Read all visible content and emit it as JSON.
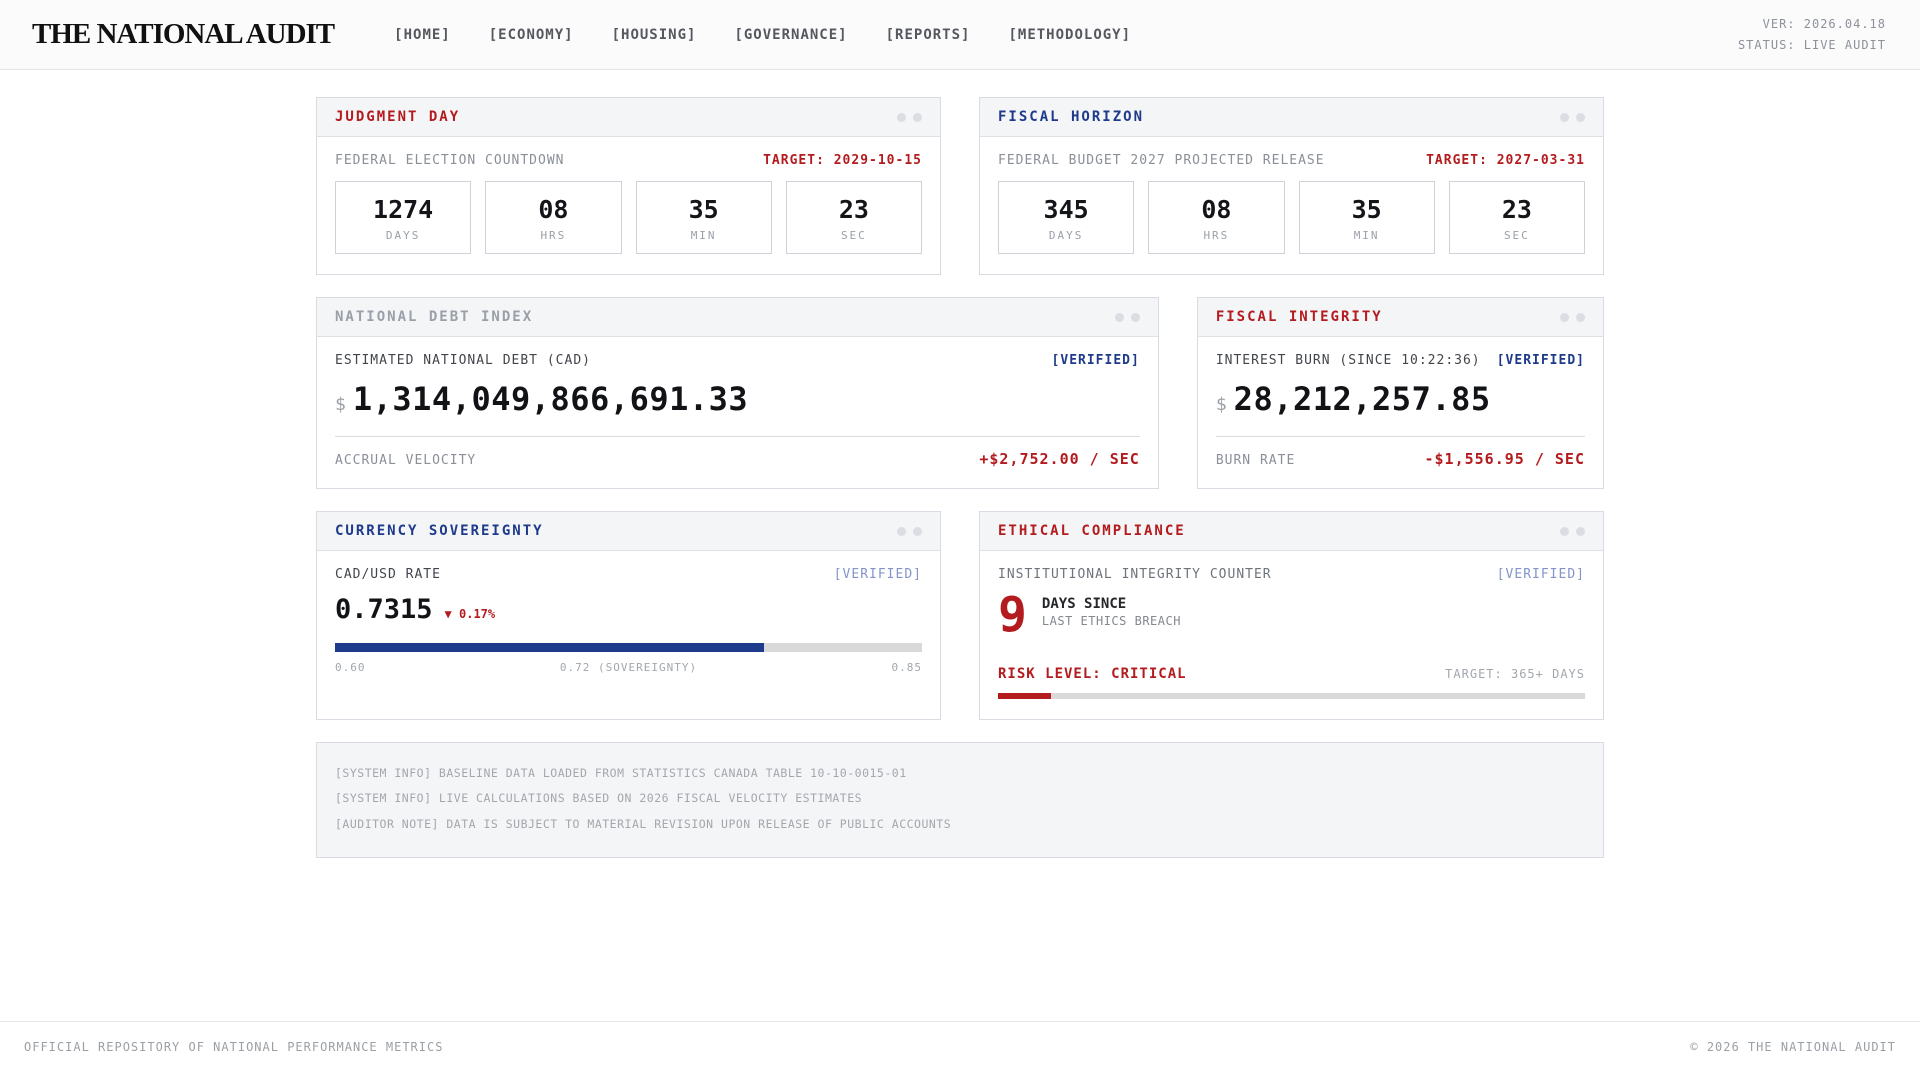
{
  "brand": {
    "logo": "THE NATIONAL AUDIT",
    "version": "VER: 2026.04.18",
    "status": "STATUS: LIVE AUDIT"
  },
  "nav": {
    "items": [
      {
        "label": "[HOME]"
      },
      {
        "label": "[ECONOMY]"
      },
      {
        "label": "[HOUSING]"
      },
      {
        "label": "[GOVERNANCE]"
      },
      {
        "label": "[REPORTS]"
      },
      {
        "label": "[METHODOLOGY]"
      }
    ]
  },
  "panels": {
    "judgment_day": {
      "title": "JUDGMENT DAY",
      "subtitle": "FEDERAL ELECTION COUNTDOWN",
      "target": "TARGET: 2029-10-15",
      "countdown": [
        {
          "value": "1274",
          "unit": "DAYS"
        },
        {
          "value": "08",
          "unit": "HRS"
        },
        {
          "value": "35",
          "unit": "MIN"
        },
        {
          "value": "23",
          "unit": "SEC"
        }
      ]
    },
    "fiscal_horizon": {
      "title": "FISCAL HORIZON",
      "subtitle": "FEDERAL BUDGET 2027 PROJECTED RELEASE",
      "target": "TARGET: 2027-03-31",
      "countdown": [
        {
          "value": "345",
          "unit": "DAYS"
        },
        {
          "value": "08",
          "unit": "HRS"
        },
        {
          "value": "35",
          "unit": "MIN"
        },
        {
          "value": "23",
          "unit": "SEC"
        }
      ]
    },
    "national_debt": {
      "title": "NATIONAL DEBT INDEX",
      "label": "ESTIMATED NATIONAL DEBT (CAD)",
      "verified": "[VERIFIED]",
      "currency_symbol": "$",
      "value": "1,314,049,866,691.33",
      "velocity_label": "ACCRUAL VELOCITY",
      "velocity_value": "+$2,752.00 / SEC"
    },
    "fiscal_integrity": {
      "title": "FISCAL INTEGRITY",
      "label": "INTEREST BURN (SINCE 10:22:36)",
      "verified": "[VERIFIED]",
      "currency_symbol": "$",
      "value": "28,212,257.85",
      "burn_label": "BURN RATE",
      "burn_value": "-$1,556.95 / SEC"
    },
    "currency_sovereignty": {
      "title": "CURRENCY SOVEREIGNTY",
      "label": "CAD/USD RATE",
      "verified": "[VERIFIED]",
      "rate": "0.7315",
      "change": "▼ 0.17%",
      "progress_pct": 73,
      "scale_min": "0.60",
      "scale_mid": "0.72 (SOVEREIGNTY)",
      "scale_max": "0.85"
    },
    "ethical_compliance": {
      "title": "ETHICAL COMPLIANCE",
      "label": "INSTITUTIONAL INTEGRITY COUNTER",
      "verified": "[VERIFIED]",
      "days": "9",
      "days_line1": "DAYS SINCE",
      "days_line2": "LAST ETHICS BREACH",
      "risk_level": "RISK LEVEL: CRITICAL",
      "risk_target": "TARGET: 365+ DAYS",
      "progress_pct": 9
    }
  },
  "system_log": {
    "line1": "[SYSTEM INFO] BASELINE DATA LOADED FROM STATISTICS CANADA TABLE 10-10-0015-01",
    "line2": "[SYSTEM INFO] LIVE CALCULATIONS BASED ON 2026 FISCAL VELOCITY ESTIMATES",
    "line3": "[AUDITOR NOTE] DATA IS SUBJECT TO MATERIAL REVISION UPON RELEASE OF PUBLIC ACCOUNTS"
  },
  "footer": {
    "left": "OFFICIAL REPOSITORY OF NATIONAL PERFORMANCE METRICS",
    "right": "© 2026 THE NATIONAL AUDIT"
  },
  "colors": {
    "accent_red": "#b31b1e",
    "accent_navy": "#1e3a8a",
    "verified_light": "#8494cb",
    "panel_header_bg": "#f4f5f7",
    "border": "#d8dbe1"
  }
}
